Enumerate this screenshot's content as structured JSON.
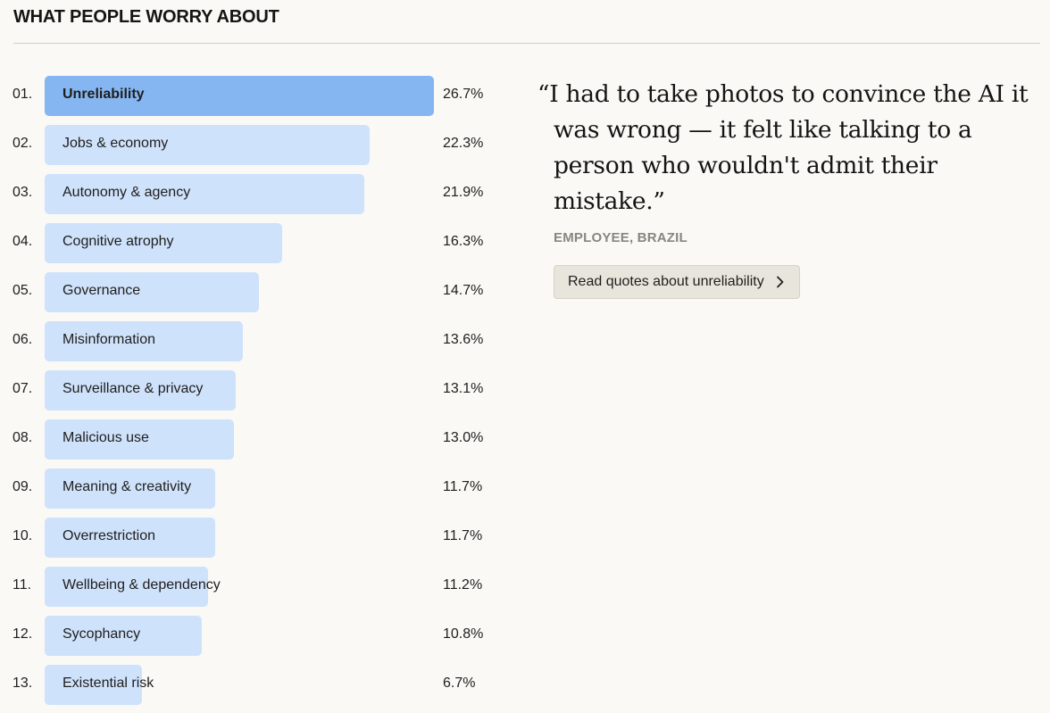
{
  "page": {
    "title": "WHAT PEOPLE WORRY ABOUT"
  },
  "colors": {
    "background": "#faf9f5",
    "bar": "#cfe2fb",
    "bar_active": "#85b6f2",
    "attribution": "#87867f"
  },
  "chart_data": {
    "type": "bar",
    "categories": [
      "Unreliability",
      "Jobs & economy",
      "Autonomy & agency",
      "Cognitive atrophy",
      "Governance",
      "Misinformation",
      "Surveillance & privacy",
      "Malicious use",
      "Meaning & creativity",
      "Overrestriction",
      "Wellbeing & dependency",
      "Sycophancy",
      "Existential risk"
    ],
    "values": [
      26.7,
      22.3,
      21.9,
      16.3,
      14.7,
      13.6,
      13.1,
      13.0,
      11.7,
      11.7,
      11.2,
      10.8,
      6.7
    ],
    "ranks": [
      "01.",
      "02.",
      "03.",
      "04.",
      "05.",
      "06.",
      "07.",
      "08.",
      "09.",
      "10.",
      "11.",
      "12.",
      "13."
    ],
    "value_labels": [
      "26.7%",
      "22.3%",
      "21.9%",
      "16.3%",
      "14.7%",
      "13.6%",
      "13.1%",
      "13.0%",
      "11.7%",
      "11.7%",
      "11.2%",
      "10.8%",
      "6.7%"
    ],
    "selected_index": 0,
    "orientation": "horizontal"
  },
  "quote": {
    "text": "“I had to take photos to convince the AI it was wrong — it felt like talking to a person who wouldn't admit their mistake.”",
    "attribution": "EMPLOYEE, BRAZIL",
    "button_label": "Read quotes about unreliability",
    "button_icon": "chevron-right-icon"
  }
}
